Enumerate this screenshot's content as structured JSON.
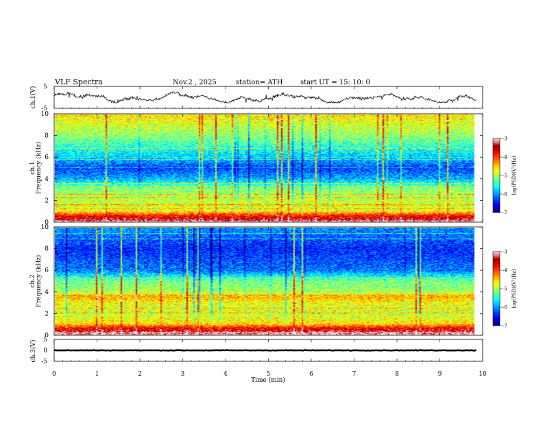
{
  "header": {
    "title": "VLF  Spectra",
    "date": "Nov.2  , 2025",
    "station": "station= ATH",
    "start": "start  UT  =   15: 10: 0"
  },
  "chart_data": [
    {
      "id": "ch1-waveform",
      "type": "line",
      "ylabel": "ch.1(V)",
      "ylim": [
        -5,
        5
      ],
      "yticks": [
        "5",
        "-5"
      ],
      "xlim": [
        0,
        9.85
      ],
      "amplitude_range": [
        -2.5,
        2.5
      ]
    },
    {
      "id": "ch1-spectrogram",
      "type": "heatmap",
      "ylabel": "ch.1\nFrequency  (kHz)",
      "ylabel_lines": [
        "ch.1",
        "Frequency  (kHz)"
      ],
      "ylim": [
        0,
        10
      ],
      "yticks": [
        "0",
        "2",
        "4",
        "6",
        "8",
        "10"
      ],
      "xlim": [
        0,
        9.85
      ],
      "colorbar": {
        "label": "log(PSD)(V²/Hz)",
        "range": [
          -7,
          -3
        ],
        "ticks": [
          "-3",
          "-4",
          "-5",
          "-6",
          "-7"
        ]
      },
      "profile_khz_vs_logpsd": [
        [
          0,
          -3.2
        ],
        [
          0.5,
          -3.8
        ],
        [
          1,
          -4.8
        ],
        [
          2,
          -4.9
        ],
        [
          3,
          -5.1
        ],
        [
          4,
          -5.9
        ],
        [
          5,
          -6.3
        ],
        [
          6,
          -5.8
        ],
        [
          8,
          -5.1
        ],
        [
          10,
          -4.6
        ]
      ]
    },
    {
      "id": "ch2-spectrogram",
      "type": "heatmap",
      "ylabel": "ch.2\nFrequency  (kHz)",
      "ylabel_lines": [
        "ch.2",
        "Frequency  (kHz)"
      ],
      "ylim": [
        0,
        10
      ],
      "yticks": [
        "0",
        "2",
        "4",
        "6",
        "8",
        "10"
      ],
      "xlim": [
        0,
        9.85
      ],
      "colorbar": {
        "label": "log(PSD)(V²/Hz)",
        "range": [
          -7,
          -3
        ],
        "ticks": [
          "-3",
          "-4",
          "-5",
          "-6",
          "-7"
        ]
      },
      "profile_khz_vs_logpsd": [
        [
          0,
          -3.1
        ],
        [
          0.5,
          -3.6
        ],
        [
          1,
          -4.6
        ],
        [
          2,
          -4.9
        ],
        [
          3,
          -4.7
        ],
        [
          3.5,
          -4.4
        ],
        [
          4,
          -5.0
        ],
        [
          5,
          -5.2
        ],
        [
          6,
          -6.1
        ],
        [
          8,
          -6.4
        ],
        [
          10,
          -6.0
        ]
      ]
    },
    {
      "id": "ch3-waveform",
      "type": "line",
      "ylabel": "ch.3(V)",
      "ylim": [
        -5,
        5
      ],
      "yticks": [
        "5",
        "0",
        "-5"
      ],
      "xlim": [
        0,
        9.85
      ],
      "level": 0
    }
  ],
  "x_axis": {
    "label": "Time  (min)",
    "range": [
      0,
      10
    ],
    "ticks": [
      "0",
      "1",
      "2",
      "3",
      "4",
      "5",
      "6",
      "7",
      "8",
      "9",
      "10"
    ]
  }
}
